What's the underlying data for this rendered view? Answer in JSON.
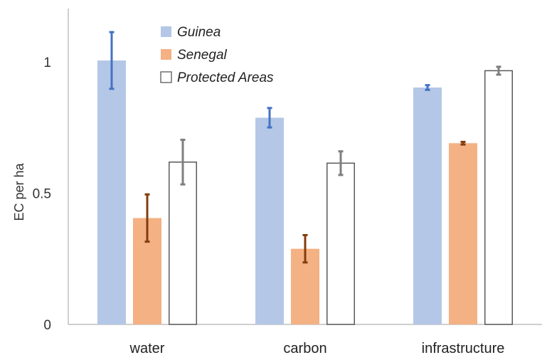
{
  "chart_data": {
    "type": "bar",
    "title": "",
    "xlabel": "",
    "ylabel": "EC per ha",
    "ylim": [
      0,
      1.2
    ],
    "yticks": [
      0,
      0.5,
      1
    ],
    "ytick_labels": [
      "0",
      "0.5",
      "1"
    ],
    "categories": [
      "water",
      "carbon",
      "infrastructure"
    ],
    "legend_position": "top-center",
    "grid": false,
    "series": [
      {
        "name": "Guinea",
        "values": [
          1.005,
          0.787,
          0.902
        ],
        "errors": [
          0.108,
          0.037,
          0.009
        ],
        "fill": "#b4c7e7",
        "stroke": "none",
        "error_color": "#4472c4"
      },
      {
        "name": "Senegal",
        "values": [
          0.405,
          0.288,
          0.69
        ],
        "errors": [
          0.09,
          0.052,
          0.005
        ],
        "fill": "#f4b183",
        "stroke": "none",
        "error_color": "#843c0c"
      },
      {
        "name": "Protected Areas",
        "values": [
          0.618,
          0.614,
          0.966
        ],
        "errors": [
          0.085,
          0.045,
          0.015
        ],
        "fill": "#ffffff",
        "stroke": "#595959",
        "error_color": "#7f7f7f"
      }
    ]
  }
}
